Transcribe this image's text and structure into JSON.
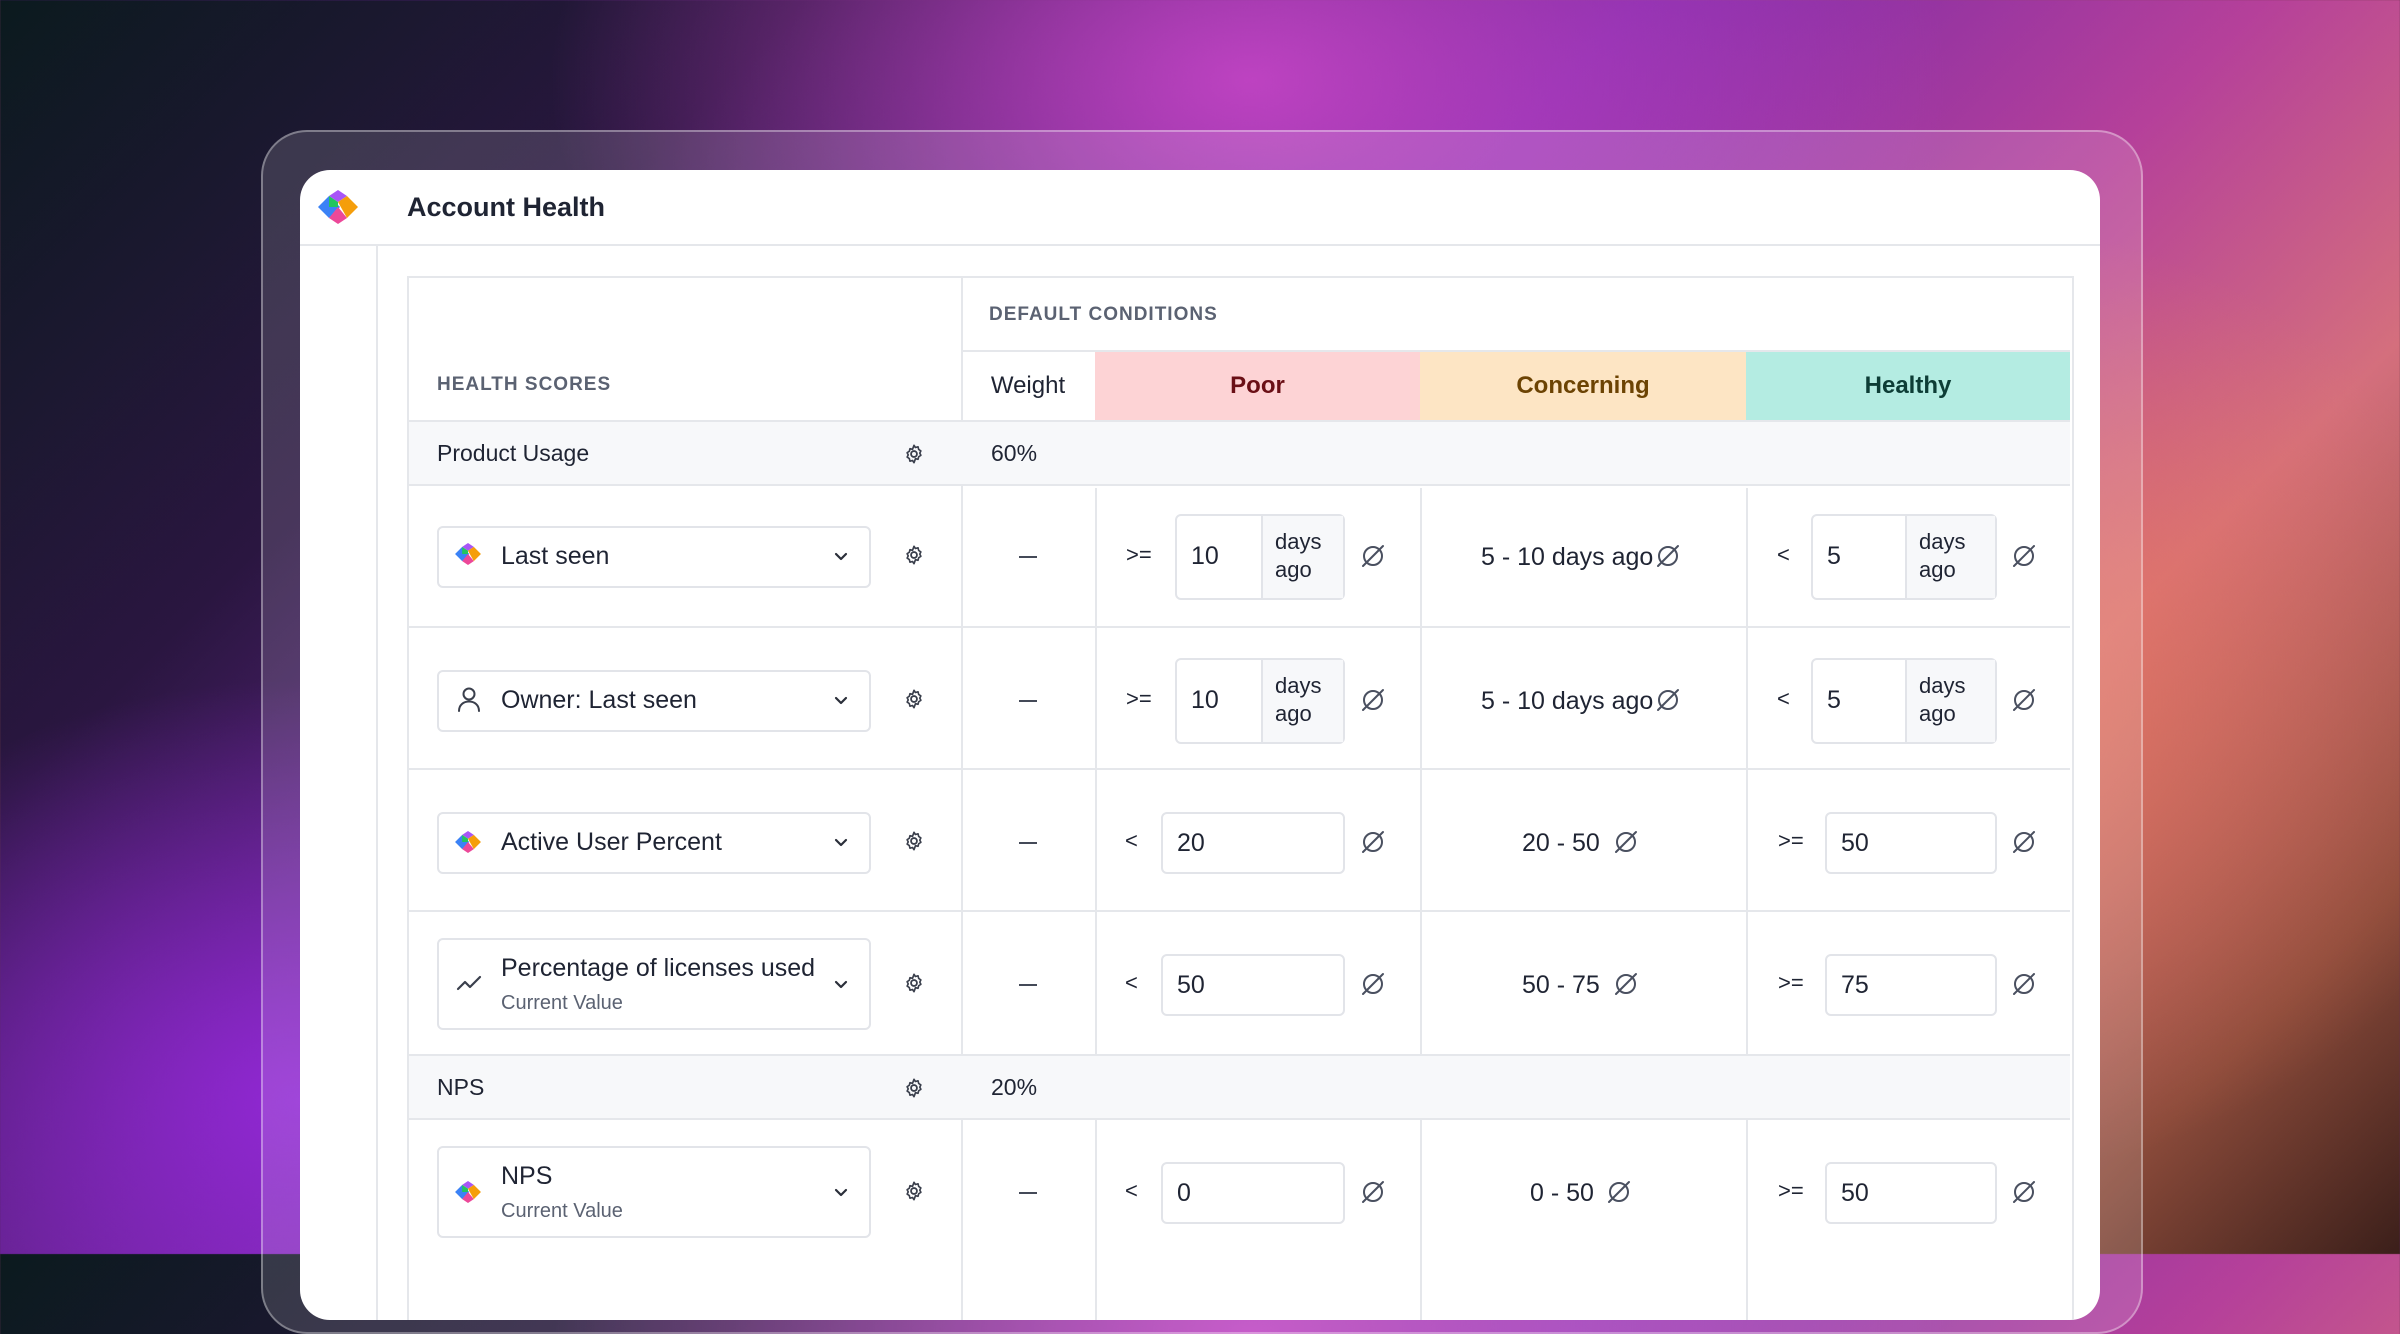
{
  "app": {
    "title": "Account Health"
  },
  "table": {
    "left_header": "HEALTH SCORES",
    "right_header": "DEFAULT CONDITIONS",
    "columns": {
      "weight": "Weight",
      "poor": "Poor",
      "concerning": "Concerning",
      "healthy": "Healthy"
    },
    "colors": {
      "poor_bg": "#fdd3d5",
      "concerning_bg": "#fde5c4",
      "healthy_bg": "#b4ece2"
    }
  },
  "groups": [
    {
      "label": "Product Usage",
      "weight": "60%"
    },
    {
      "label": "NPS",
      "weight": "20%"
    }
  ],
  "metrics": [
    {
      "name": "Last seen",
      "icon": "app-logo-icon",
      "weight": "–",
      "poor": {
        "op": ">=",
        "value": "10",
        "unit_line1": "days",
        "unit_line2": "ago"
      },
      "concerning": "5 - 10 days ago",
      "healthy": {
        "op": "<",
        "value": "5",
        "unit_line1": "days",
        "unit_line2": "ago"
      }
    },
    {
      "name": "Owner: Last seen",
      "icon": "user-icon",
      "weight": "–",
      "poor": {
        "op": ">=",
        "value": "10",
        "unit_line1": "days",
        "unit_line2": "ago"
      },
      "concerning": "5 - 10 days ago",
      "healthy": {
        "op": "<",
        "value": "5",
        "unit_line1": "days",
        "unit_line2": "ago"
      }
    },
    {
      "name": "Active User Percent",
      "icon": "app-logo-icon",
      "weight": "–",
      "poor": {
        "op": "<",
        "value": "20"
      },
      "concerning": "20 - 50",
      "healthy": {
        "op": ">=",
        "value": "50"
      }
    },
    {
      "name": "Percentage of licenses used",
      "sub": "Current Value",
      "icon": "trend-line-icon",
      "weight": "–",
      "poor": {
        "op": "<",
        "value": "50"
      },
      "concerning": "50 - 75",
      "healthy": {
        "op": ">=",
        "value": "75"
      }
    },
    {
      "name": "NPS",
      "sub": "Current Value",
      "icon": "app-logo-icon",
      "weight": "–",
      "poor": {
        "op": "<",
        "value": "0"
      },
      "concerning": "0 - 50",
      "healthy": {
        "op": ">=",
        "value": "50"
      }
    }
  ]
}
